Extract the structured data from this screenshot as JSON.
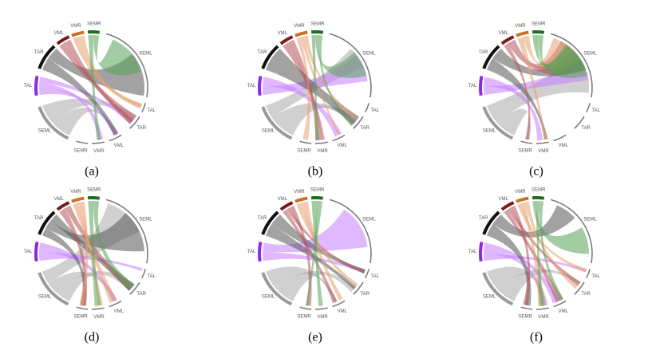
{
  "panels": [
    {
      "caption": "(a)"
    },
    {
      "caption": "(b)"
    },
    {
      "caption": "(c)"
    },
    {
      "caption": "(d)"
    },
    {
      "caption": "(e)"
    },
    {
      "caption": "(f)"
    }
  ],
  "sectors": {
    "sources": [
      {
        "label": "SEML"
      },
      {
        "label": "TAL"
      },
      {
        "label": "TAR"
      },
      {
        "label": "VML"
      },
      {
        "label": "VMR"
      },
      {
        "label": "SEMR"
      }
    ],
    "targets": [
      {
        "label": "SEML"
      },
      {
        "label": "TAL"
      },
      {
        "label": "TAR"
      },
      {
        "label": "VML"
      },
      {
        "label": "VMR"
      },
      {
        "label": "SEMR"
      }
    ]
  }
}
